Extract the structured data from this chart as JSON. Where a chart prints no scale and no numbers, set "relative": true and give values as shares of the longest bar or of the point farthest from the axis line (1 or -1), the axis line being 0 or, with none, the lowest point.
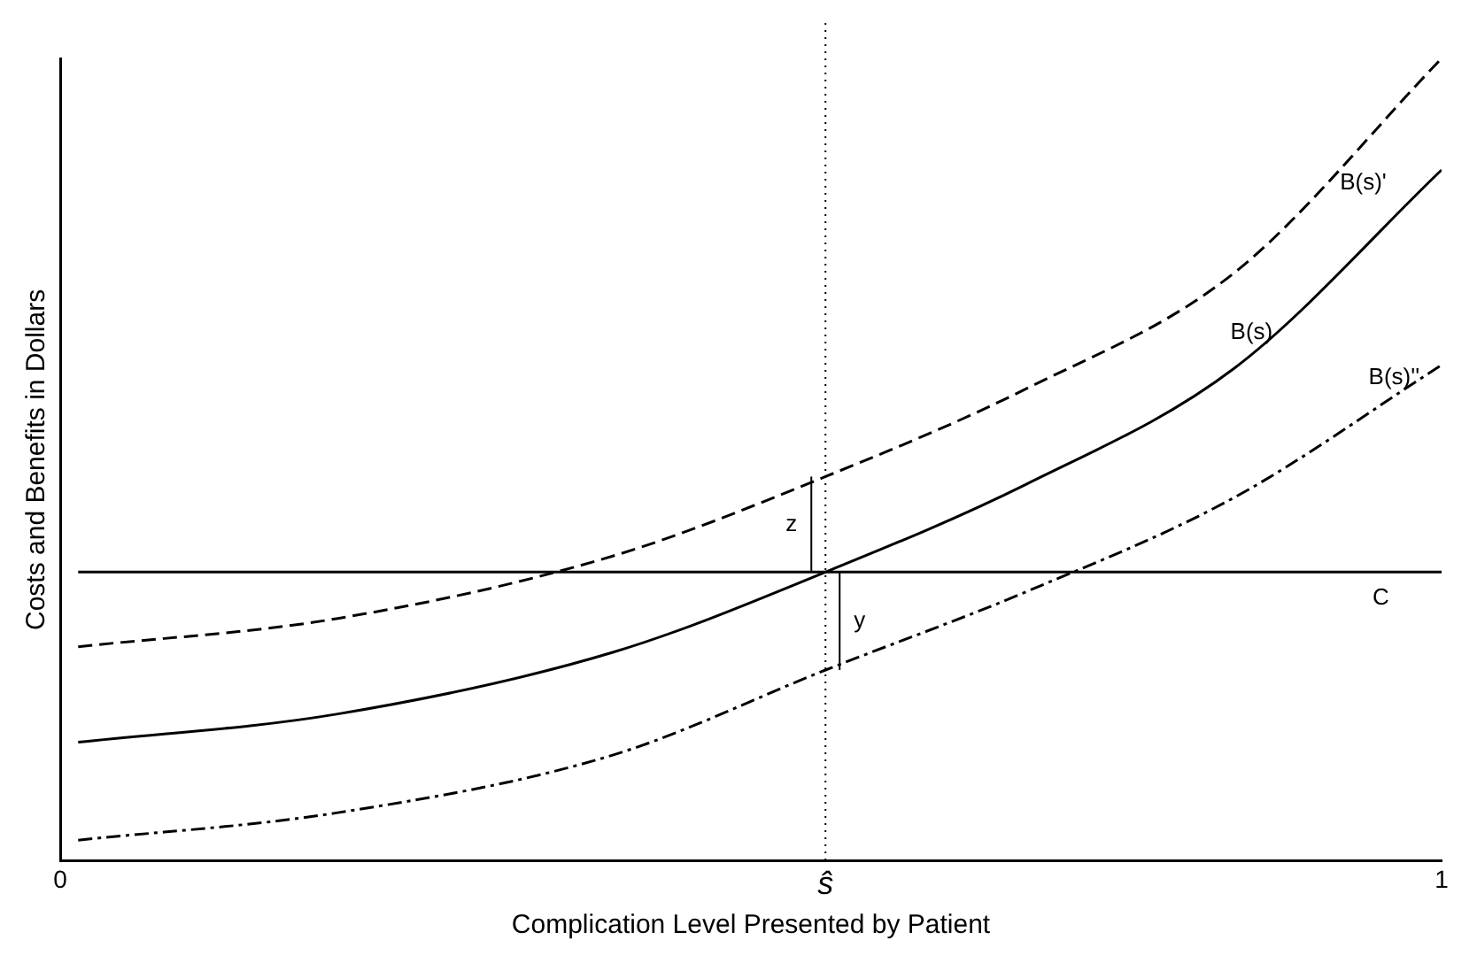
{
  "chart_data": {
    "type": "line",
    "xlabel": "Complication Level Presented by Patient",
    "ylabel": "Costs and Benefits in Dollars",
    "relative": true,
    "legend": false,
    "grid": false,
    "marker": "none",
    "x": [
      0.013,
      0.2,
      0.4,
      0.554,
      0.7,
      0.85,
      1.0
    ],
    "xlim": [
      0,
      1
    ],
    "xticks": [
      0,
      {
        "value": 0.554,
        "label": "ŝ"
      },
      1
    ],
    "series": [
      {
        "name": "B(s)'",
        "color": "#000000",
        "line_style": "dashed",
        "values": [
          0.267,
          0.302,
          0.38,
          0.479,
          0.589,
          0.733,
          1
        ]
      },
      {
        "name": "B(s)",
        "color": "#000000",
        "line_style": "solid",
        "values": [
          0.148,
          0.183,
          0.26,
          0.36,
          0.47,
          0.614,
          0.861
        ]
      },
      {
        "name": "B(s)''",
        "color": "#000000",
        "line_style": "dashdot",
        "values": [
          0.026,
          0.06,
          0.132,
          0.238,
          0.336,
          0.453,
          0.618
        ]
      },
      {
        "name": "C",
        "color": "#000000",
        "line_style": "solid",
        "values": [
          0.36,
          0.36,
          0.36,
          0.36,
          0.36,
          0.36,
          0.36
        ]
      }
    ],
    "ref_lines": [
      {
        "axis": "x",
        "value": 0.554,
        "line_style": "dotted",
        "color": "#000000"
      }
    ],
    "annotations": [
      "z",
      "y"
    ]
  }
}
